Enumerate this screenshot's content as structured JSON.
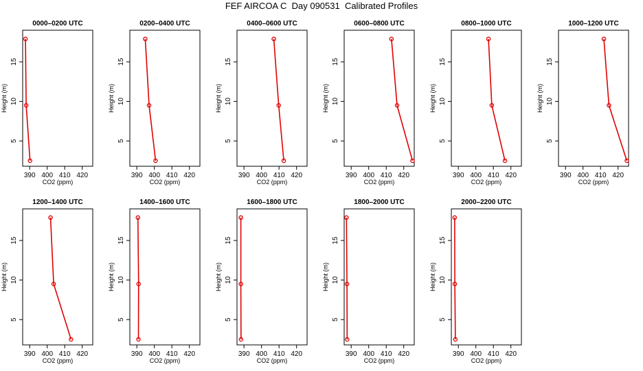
{
  "figure": {
    "title": "FEF AIRCOA C  Day 090531  Calibrated Profiles"
  },
  "colors": {
    "series": "#e00000",
    "axis": "#000000"
  },
  "chart_data": [
    {
      "type": "line",
      "title": "0000–0200 UTC",
      "xlabel": "CO2 (ppm)",
      "ylabel": "Height (m)",
      "xlim": [
        386,
        426
      ],
      "ylim": [
        1.8,
        19
      ],
      "xticks": [
        390,
        400,
        410,
        420
      ],
      "yticks": [
        5,
        10,
        15
      ],
      "x": [
        387.6,
        388.0,
        390.2
      ],
      "y": [
        17.9,
        9.5,
        2.5
      ]
    },
    {
      "type": "line",
      "title": "0200–0400 UTC",
      "xlabel": "CO2 (ppm)",
      "ylabel": "Height (m)",
      "xlim": [
        386,
        426
      ],
      "ylim": [
        1.8,
        19
      ],
      "xticks": [
        390,
        400,
        410,
        420
      ],
      "yticks": [
        5,
        10,
        15
      ],
      "x": [
        394.8,
        397.0,
        400.7
      ],
      "y": [
        17.9,
        9.5,
        2.5
      ]
    },
    {
      "type": "line",
      "title": "0400–0600 UTC",
      "xlabel": "CO2 (ppm)",
      "ylabel": "Height (m)",
      "xlim": [
        386,
        426
      ],
      "ylim": [
        1.8,
        19
      ],
      "xticks": [
        390,
        400,
        410,
        420
      ],
      "yticks": [
        5,
        10,
        15
      ],
      "x": [
        407.0,
        409.8,
        412.7
      ],
      "y": [
        17.9,
        9.5,
        2.5
      ]
    },
    {
      "type": "line",
      "title": "0600–0800 UTC",
      "xlabel": "CO2 (ppm)",
      "ylabel": "Height (m)",
      "xlim": [
        386,
        426
      ],
      "ylim": [
        1.8,
        19
      ],
      "xticks": [
        390,
        400,
        410,
        420
      ],
      "yticks": [
        5,
        10,
        15
      ],
      "x": [
        413.0,
        416.2,
        425.0
      ],
      "y": [
        17.9,
        9.5,
        2.5
      ]
    },
    {
      "type": "line",
      "title": "0800–1000 UTC",
      "xlabel": "CO2 (ppm)",
      "ylabel": "Height (m)",
      "xlim": [
        386,
        426
      ],
      "ylim": [
        1.8,
        19
      ],
      "xticks": [
        390,
        400,
        410,
        420
      ],
      "yticks": [
        5,
        10,
        15
      ],
      "x": [
        407.2,
        409.1,
        416.6
      ],
      "y": [
        17.9,
        9.5,
        2.5
      ]
    },
    {
      "type": "line",
      "title": "1000–1200 UTC",
      "xlabel": "CO2 (ppm)",
      "ylabel": "Height (m)",
      "xlim": [
        386,
        426
      ],
      "ylim": [
        1.8,
        19
      ],
      "xticks": [
        390,
        400,
        410,
        420
      ],
      "yticks": [
        5,
        10,
        15
      ],
      "x": [
        411.9,
        414.8,
        425.0
      ],
      "y": [
        17.9,
        9.5,
        2.5
      ]
    },
    {
      "type": "line",
      "title": "1200–1400 UTC",
      "xlabel": "CO2 (ppm)",
      "ylabel": "Height (m)",
      "xlim": [
        386,
        426
      ],
      "ylim": [
        1.8,
        19
      ],
      "xticks": [
        390,
        400,
        410,
        420
      ],
      "yticks": [
        5,
        10,
        15
      ],
      "x": [
        401.9,
        403.7,
        413.6
      ],
      "y": [
        17.9,
        9.5,
        2.5
      ]
    },
    {
      "type": "line",
      "title": "1400–1600 UTC",
      "xlabel": "CO2 (ppm)",
      "ylabel": "Height (m)",
      "xlim": [
        386,
        426
      ],
      "ylim": [
        1.8,
        19
      ],
      "xticks": [
        390,
        400,
        410,
        420
      ],
      "yticks": [
        5,
        10,
        15
      ],
      "x": [
        390.6,
        391.0,
        390.9
      ],
      "y": [
        17.9,
        9.5,
        2.5
      ]
    },
    {
      "type": "line",
      "title": "1600–1800 UTC",
      "xlabel": "CO2 (ppm)",
      "ylabel": "Height (m)",
      "xlim": [
        386,
        426
      ],
      "ylim": [
        1.8,
        19
      ],
      "xticks": [
        390,
        400,
        410,
        420
      ],
      "yticks": [
        5,
        10,
        15
      ],
      "x": [
        388.2,
        388.2,
        388.3
      ],
      "y": [
        17.9,
        9.5,
        2.5
      ]
    },
    {
      "type": "line",
      "title": "1800–2000 UTC",
      "xlabel": "CO2 (ppm)",
      "ylabel": "Height (m)",
      "xlim": [
        386,
        426
      ],
      "ylim": [
        1.8,
        19
      ],
      "xticks": [
        390,
        400,
        410,
        420
      ],
      "yticks": [
        5,
        10,
        15
      ],
      "x": [
        387.3,
        387.6,
        387.7
      ],
      "y": [
        17.9,
        9.5,
        2.5
      ]
    },
    {
      "type": "line",
      "title": "2000–2200 UTC",
      "xlabel": "CO2 (ppm)",
      "ylabel": "Height (m)",
      "xlim": [
        386,
        426
      ],
      "ylim": [
        1.8,
        19
      ],
      "xticks": [
        390,
        400,
        410,
        420
      ],
      "yticks": [
        5,
        10,
        15
      ],
      "x": [
        387.9,
        388.0,
        388.3
      ],
      "y": [
        17.9,
        9.5,
        2.5
      ]
    }
  ]
}
